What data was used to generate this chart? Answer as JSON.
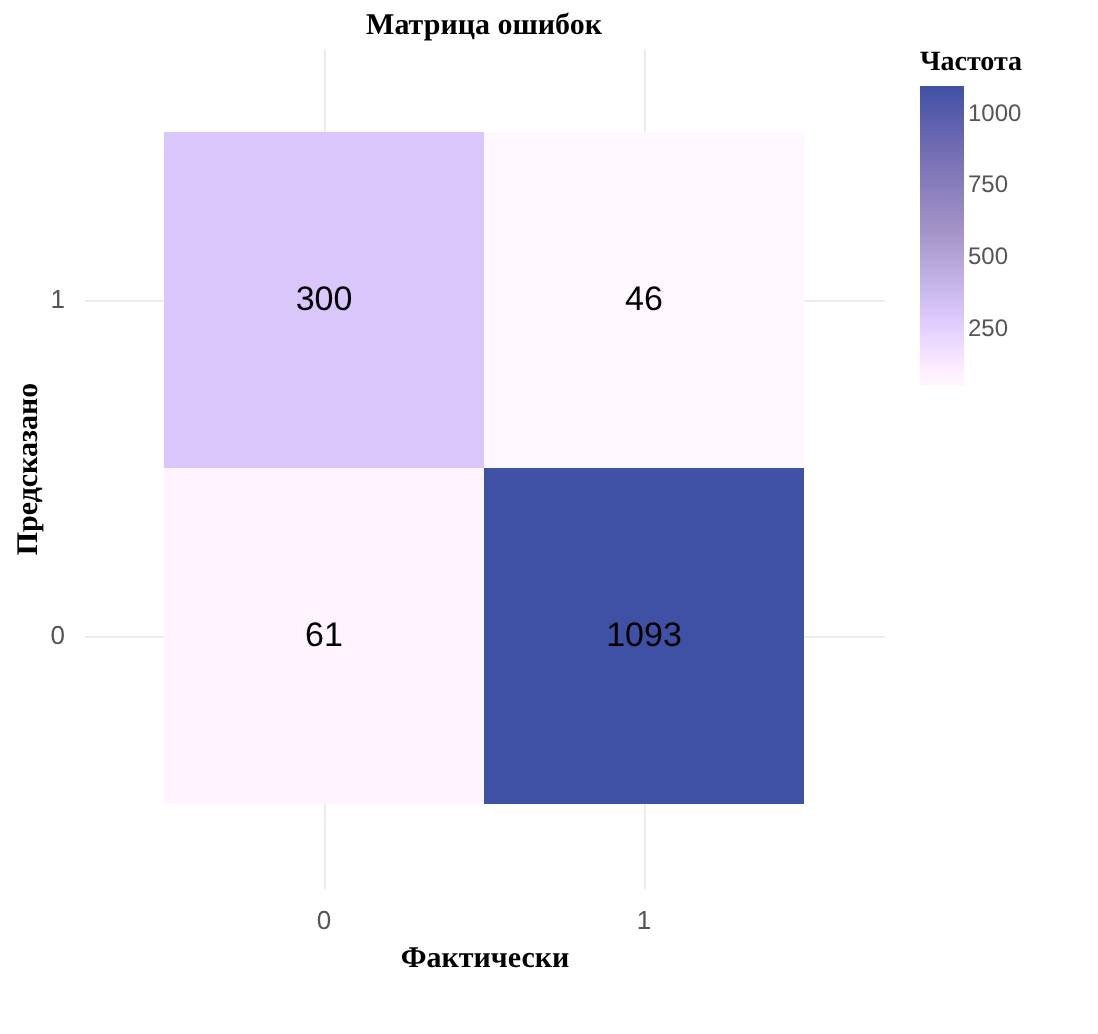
{
  "chart_data": {
    "type": "heatmap",
    "title": "Матрица ошибок",
    "xlabel": "Фактически",
    "ylabel": "Предсказано",
    "legend_title": "Частота",
    "categories": [
      "0",
      "1"
    ],
    "y_categories": [
      "1",
      "0"
    ],
    "cells": [
      [
        300,
        46
      ],
      [
        61,
        1093
      ]
    ],
    "clim": [
      46,
      1093
    ],
    "cticks": [
      250,
      500,
      750,
      1000
    ],
    "data_labels": true,
    "grid": true
  }
}
